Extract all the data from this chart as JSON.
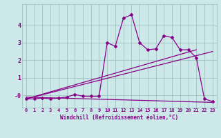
{
  "xlabel": "Windchill (Refroidissement éolien,°C)",
  "bg_color": "#cce8e8",
  "line_color": "#880088",
  "grid_color": "#99bbbb",
  "xlim": [
    -0.5,
    23.5
  ],
  "ylim": [
    -0.7,
    5.2
  ],
  "xticks": [
    0,
    1,
    2,
    3,
    4,
    5,
    6,
    7,
    8,
    9,
    10,
    11,
    12,
    13,
    14,
    15,
    16,
    17,
    18,
    19,
    20,
    21,
    22,
    23
  ],
  "yticks": [
    0,
    1,
    2,
    3,
    4
  ],
  "ytick_labels": [
    "-0",
    "1",
    "2",
    "3",
    "4"
  ],
  "data_line": {
    "x": [
      0,
      1,
      2,
      3,
      4,
      5,
      6,
      7,
      8,
      9,
      10,
      11,
      12,
      13,
      14,
      15,
      16,
      17,
      18,
      19,
      20,
      21,
      22,
      23
    ],
    "y": [
      -0.2,
      -0.2,
      -0.15,
      -0.2,
      -0.15,
      -0.1,
      0.05,
      -0.05,
      -0.05,
      -0.05,
      3.0,
      2.8,
      4.4,
      4.6,
      3.0,
      2.6,
      2.65,
      3.4,
      3.3,
      2.6,
      2.6,
      2.15,
      -0.2,
      -0.35
    ]
  },
  "trend_line1": {
    "x": [
      0,
      21
    ],
    "y": [
      -0.2,
      2.6
    ]
  },
  "trend_line2": {
    "x": [
      0,
      23
    ],
    "y": [
      -0.2,
      2.5
    ]
  },
  "flat_line": {
    "x": [
      0,
      23
    ],
    "y": [
      -0.1,
      -0.4
    ]
  },
  "marker_style": "D",
  "marker_size": 2,
  "line_width": 0.9,
  "tick_fontsize": 5,
  "xlabel_fontsize": 5.5
}
